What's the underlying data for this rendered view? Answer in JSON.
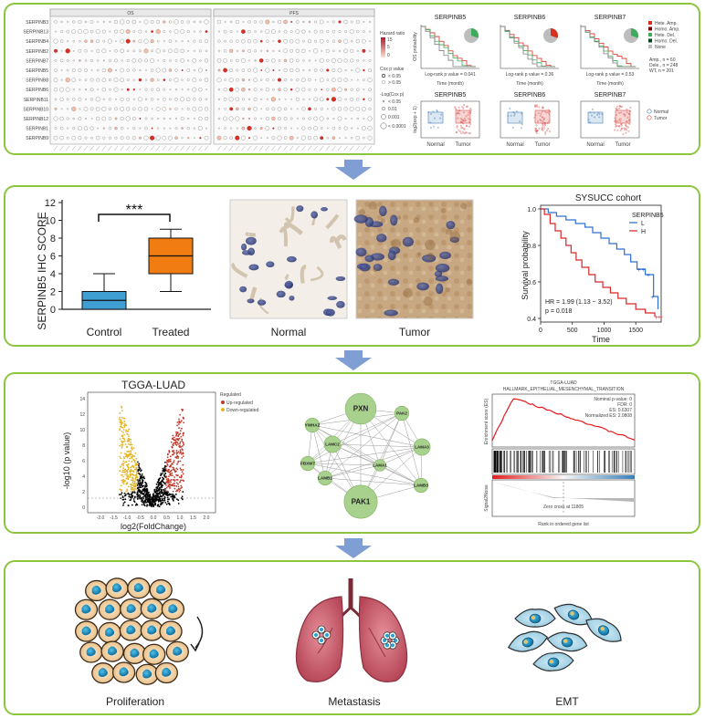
{
  "panel1": {
    "dot_plot": {
      "col_titles": [
        "OS",
        "PFS"
      ],
      "genes": [
        "SERPINB3",
        "SERPINB13",
        "SERPINB4",
        "SERPINB2",
        "SERPINB7",
        "SERPINB5",
        "SERPINB8",
        "SERPINB6",
        "SERPINB11",
        "SERPINB10",
        "SERPINB12",
        "SERPINB1",
        "SERPINB9"
      ],
      "legend_hr_title": "Hazard ratio",
      "legend_hr_ticks": [
        "15",
        "5",
        "0"
      ],
      "legend_cox_title": "Cox p value",
      "legend_cox_items": [
        "< 0.05",
        "> 0.05"
      ],
      "legend_size_title": "-Log(Cox p)",
      "legend_size_items": [
        "< 0.05",
        "0.01",
        "0.001",
        "< 0.0001"
      ]
    },
    "km_small": [
      {
        "title": "SERPINB5",
        "ylabel": "OS probability",
        "xlabel": "Time (month)",
        "pvalue": "Log-rank p value = 0.041"
      },
      {
        "title": "SERPINB6",
        "ylabel": "",
        "xlabel": "Time (month)",
        "pvalue": "Log-rank p value = 0.36"
      },
      {
        "title": "SERPINB7",
        "ylabel": "",
        "xlabel": "Time (month)",
        "pvalue": "Log-rank p value = 0.53"
      }
    ],
    "cnv_legend": [
      "Hete. Amp.",
      "Homo. Amp.",
      "Hete. Del.",
      "Homo. Del.",
      "None"
    ],
    "cnv_legend_colors": [
      "#d7301f",
      "#7f0000",
      "#41ab5d",
      "#00441b",
      "#bdbdbd"
    ],
    "km_legend": [
      "Amp., n = 60",
      "Dele., n = 248",
      "WT, n = 201"
    ],
    "box_small": [
      {
        "title": "SERPINB5",
        "ylabel": "log2(exp + 1)",
        "cats": [
          "Normal",
          "Tumor"
        ]
      },
      {
        "title": "SERPINB6",
        "ylabel": "",
        "cats": [
          "Normal",
          "Tumor"
        ]
      },
      {
        "title": "SERPINB7",
        "ylabel": "",
        "cats": [
          "Normal",
          "Tumor"
        ]
      }
    ],
    "box_legend": [
      "Normal",
      "Tumor"
    ]
  },
  "panel2": {
    "ihc_box": {
      "ylabel": "SERPINB5 IHC SCORE",
      "yticks": [
        "0",
        "2",
        "4",
        "6",
        "8",
        "10",
        "12"
      ],
      "categories": [
        "Control",
        "Treated"
      ],
      "significance": "***",
      "colors": [
        "#3f9fd3",
        "#f07c12"
      ]
    },
    "images": [
      {
        "caption": "Normal"
      },
      {
        "caption": "Tumor"
      }
    ],
    "km_cohort": {
      "title": "SYSUCC cohort",
      "legend_title": "SERPINB5",
      "legend_items": [
        "L",
        "H"
      ],
      "legend_colors": [
        "#2f6fd1",
        "#d62728"
      ],
      "ylabel": "Survival probability",
      "xlabel": "Time",
      "yticks": [
        "0.4",
        "0.6",
        "0.8",
        "1.0"
      ],
      "xticks": [
        "0",
        "500",
        "1000",
        "1500"
      ],
      "hr_text": "HR = 1.99 (1.13 − 3.52)",
      "p_text": "p = 0.018"
    }
  },
  "panel3": {
    "volcano": {
      "title": "TGGA-LUAD",
      "ylabel": "-log10 (p value)",
      "xlabel": "log2(FoldChange)",
      "legend_title": "Regulated",
      "legend_items": [
        "Up-regulated",
        "Down-regulated"
      ],
      "legend_colors": [
        "#c0392b",
        "#e6b422"
      ]
    },
    "network": {
      "nodes": [
        "PXN",
        "PAK1",
        "LAMC2",
        "LAMA3",
        "LAMB3",
        "LAMB1",
        "YWHAZ",
        "PAK2",
        "FBXW7",
        "LAMA1"
      ]
    },
    "gsea": {
      "title": "TGGA-LUAD",
      "subtitle": "HALLMARK_EPITHELIAL_MESENCHYMAL_TRANSITION",
      "ylabel_top": "Enrichment score (ES)",
      "ylabel_bottom": "Signal2Noise",
      "stats": [
        "Nominal p-value: 0",
        "FDR: 0",
        "ES: 0.6307",
        "Normalized ES: 2.0808"
      ],
      "zero_cross": "Zero cross at 11805",
      "xlabel": "Rank in ordered gene list"
    }
  },
  "panel4": {
    "labels": [
      "Proliferation",
      "Metastasis",
      "EMT"
    ]
  }
}
